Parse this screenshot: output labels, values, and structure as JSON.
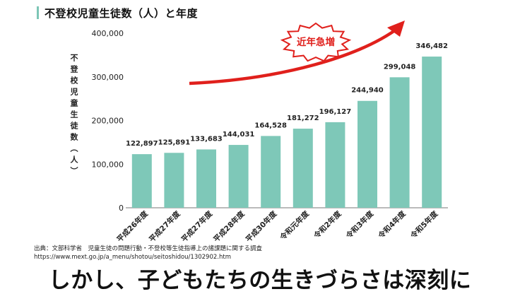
{
  "title": "不登校児童生徒数（人）と年度",
  "y_axis_label": "不登校児童生徒数（人）",
  "badge": "近年急増",
  "source_line1": "出典：文部科学省　児童生徒の問題行動・不登校等生徒指導上の諸課題に関する調査",
  "source_line2": "https://www.mext.go.jp/a_menu/shotou/seitoshidou/1302902.htm",
  "caption": "しかし、子どもたちの生きづらさは深刻に",
  "colors": {
    "bar": "#7ec8b8",
    "arrow": "#e0201c",
    "title_accent": "#7cc6b6"
  },
  "chart_data": {
    "type": "bar",
    "title": "不登校児童生徒数（人）と年度",
    "ylabel": "不登校児童生徒数（人）",
    "xlabel": "",
    "categories": [
      "平成26年度",
      "平成27年度",
      "平成27年度",
      "平成28年度",
      "平成30年度",
      "令和元年度",
      "令和2年度",
      "令和3年度",
      "令和4年度",
      "令和5年度"
    ],
    "values": [
      122897,
      125891,
      133683,
      144031,
      164528,
      181272,
      196127,
      244940,
      299048,
      346482
    ],
    "value_labels": [
      "122,897",
      "125,891",
      "133,683",
      "144,031",
      "164,528",
      "181,272",
      "196,127",
      "244,940",
      "299,048",
      "346,482"
    ],
    "ylim": [
      0,
      400000
    ],
    "yticks": [
      0,
      100000,
      200000,
      300000,
      400000
    ],
    "ytick_labels": [
      "0",
      "100,000",
      "200,000",
      "300,000",
      "400,000"
    ],
    "grid": false,
    "legend": "none"
  }
}
